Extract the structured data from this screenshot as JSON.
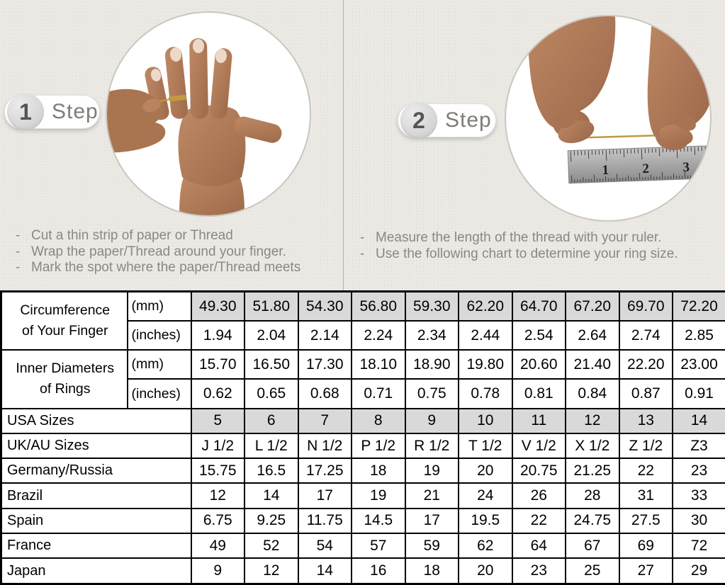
{
  "ui": {
    "bullet_marker": "-"
  },
  "steps": [
    {
      "number": "1",
      "label": "Step",
      "bullets": [
        "Cut a thin strip of paper or Thread",
        "Wrap the paper/Thread around your finger.",
        "Mark the spot where the paper/Thread meets"
      ]
    },
    {
      "number": "2",
      "label": "Step",
      "bullets": [
        "Measure the length of the thread with your ruler.",
        "Use the following chart to determine your ring size."
      ]
    }
  ],
  "ruler_numbers": [
    "1",
    "2",
    "3"
  ],
  "table": {
    "row_groups": [
      {
        "label_lines": [
          "Circumference",
          "of Your Finger"
        ],
        "rows": [
          {
            "unit": "(mm)",
            "shaded": true,
            "values": [
              "49.30",
              "51.80",
              "54.30",
              "56.80",
              "59.30",
              "62.20",
              "64.70",
              "67.20",
              "69.70",
              "72.20"
            ]
          },
          {
            "unit": "(inches)",
            "shaded": false,
            "values": [
              "1.94",
              "2.04",
              "2.14",
              "2.24",
              "2.34",
              "2.44",
              "2.54",
              "2.64",
              "2.74",
              "2.85"
            ]
          }
        ]
      },
      {
        "label_lines": [
          "Inner Diameters",
          "of Rings"
        ],
        "rows": [
          {
            "unit": "(mm)",
            "shaded": false,
            "values": [
              "15.70",
              "16.50",
              "17.30",
              "18.10",
              "18.90",
              "19.80",
              "20.60",
              "21.40",
              "22.20",
              "23.00"
            ]
          },
          {
            "unit": "(inches)",
            "shaded": false,
            "values": [
              "0.62",
              "0.65",
              "0.68",
              "0.71",
              "0.75",
              "0.78",
              "0.81",
              "0.84",
              "0.87",
              "0.91"
            ]
          }
        ]
      }
    ],
    "size_rows": [
      {
        "label": "USA Sizes",
        "shaded": true,
        "values": [
          "5",
          "6",
          "7",
          "8",
          "9",
          "10",
          "11",
          "12",
          "13",
          "14"
        ]
      },
      {
        "label": "UK/AU Sizes",
        "shaded": false,
        "values": [
          "J 1/2",
          "L 1/2",
          "N 1/2",
          "P 1/2",
          "R 1/2",
          "T 1/2",
          "V 1/2",
          "X 1/2",
          "Z 1/2",
          "Z3"
        ]
      },
      {
        "label": "Germany/Russia",
        "shaded": false,
        "values": [
          "15.75",
          "16.5",
          "17.25",
          "18",
          "19",
          "20",
          "20.75",
          "21.25",
          "22",
          "23"
        ]
      },
      {
        "label": "Brazil",
        "shaded": false,
        "values": [
          "12",
          "14",
          "17",
          "19",
          "21",
          "24",
          "26",
          "28",
          "31",
          "33"
        ]
      },
      {
        "label": "Spain",
        "shaded": false,
        "values": [
          "6.75",
          "9.25",
          "11.75",
          "14.5",
          "17",
          "19.5",
          "22",
          "24.75",
          "27.5",
          "30"
        ]
      },
      {
        "label": "France",
        "shaded": false,
        "values": [
          "49",
          "52",
          "54",
          "57",
          "59",
          "62",
          "64",
          "67",
          "69",
          "72"
        ]
      },
      {
        "label": "Japan",
        "shaded": false,
        "values": [
          "9",
          "12",
          "14",
          "16",
          "18",
          "20",
          "23",
          "25",
          "27",
          "29"
        ]
      }
    ],
    "colors": {
      "shaded_cell": "#d9d9d9",
      "border": "#000000",
      "background": "#e9e6e1"
    }
  }
}
